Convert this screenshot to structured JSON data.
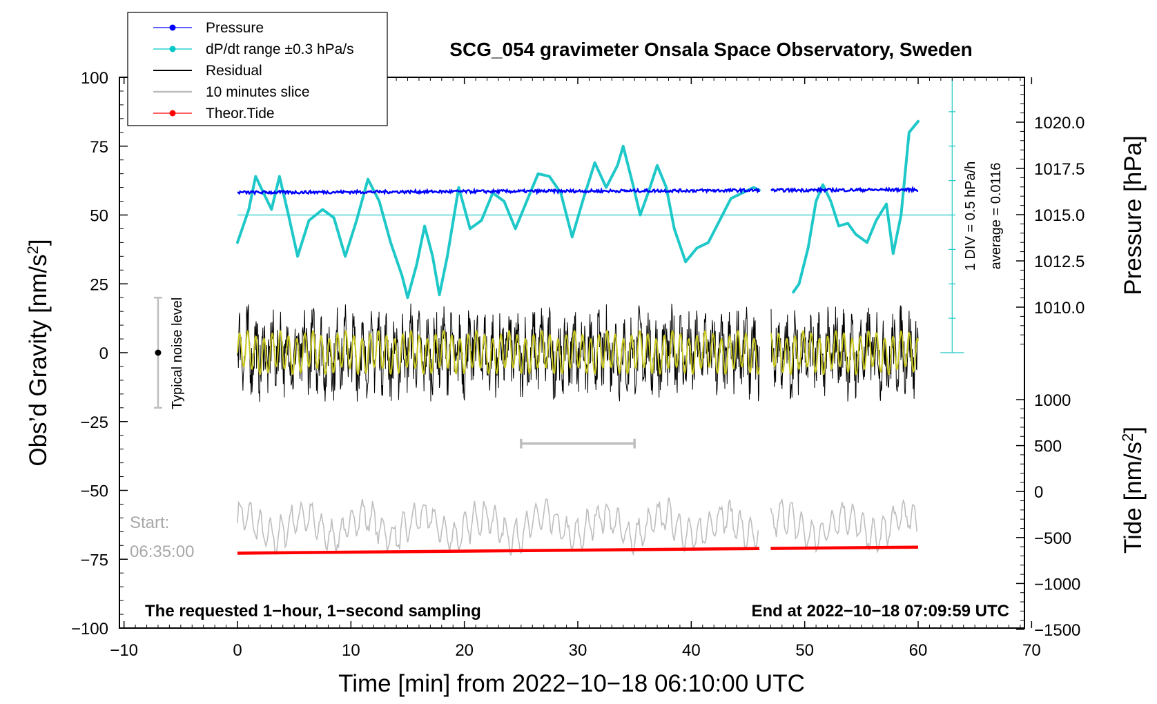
{
  "chart_data": {
    "type": "line",
    "title": "SCG_054 gravimeter Onsala Space Observatory, Sweden",
    "xlabel": "Time [min] from 2022−10−18 06:10:00 UTC",
    "ylabel": "Obs’d Gravity [nm/s²]",
    "ylabel_main": "Obs’d Gravity [nm/s",
    "ylabel_sup": "2",
    "ylabel_end": "]",
    "y2label": "Pressure [hPa]",
    "y3label_main": "Tide [nm/s",
    "y3label_sup": "2",
    "y3label_end": "]",
    "xlim": [
      -10,
      70
    ],
    "ylim": [
      -100,
      100
    ],
    "pressure_lim": [
      1007.5,
      1022.5
    ],
    "tide_lim": [
      -1500,
      1000
    ],
    "x_ticks": [
      -10,
      0,
      10,
      20,
      30,
      40,
      50,
      60,
      70
    ],
    "x_tick_labels": [
      "−10",
      "0",
      "10",
      "20",
      "30",
      "40",
      "50",
      "60",
      "70"
    ],
    "y_ticks": [
      -100,
      -75,
      -50,
      -25,
      0,
      25,
      50,
      75,
      100
    ],
    "y_tick_labels": [
      "−100",
      "−75",
      "−50",
      "−25",
      "0",
      "25",
      "50",
      "75",
      "100"
    ],
    "pressure_ticks": [
      1010.0,
      1012.5,
      1015.0,
      1017.5,
      1020.0
    ],
    "pressure_tick_labels": [
      "1010.0",
      "1012.5",
      "1015.0",
      "1017.5",
      "1020.0"
    ],
    "tide_ticks": [
      -1500,
      -1000,
      -500,
      0,
      500,
      1000
    ],
    "tide_tick_labels": [
      "−1500",
      "−1000",
      "−500",
      "0",
      "500",
      "1000"
    ],
    "legend": [
      {
        "label": "Pressure",
        "color": "#0000ff",
        "marker": true
      },
      {
        "label": "dP/dt range ±0.3 hPa/s",
        "color": "#00c8c8",
        "marker": true
      },
      {
        "label": "Residual",
        "color": "#000000",
        "marker": false
      },
      {
        "label": "10 minutes slice",
        "color": "#bebebe",
        "marker": false
      },
      {
        "label": "Theor.Tide",
        "color": "#ff0000",
        "marker": true
      }
    ],
    "series": [
      {
        "name": "Pressure",
        "axis": "pressure",
        "color": "#0000ff",
        "x_range": [
          0,
          60
        ],
        "gap": [
          46,
          47
        ],
        "mean": 1016.2,
        "noise": 0.08,
        "drift": 0.15
      },
      {
        "name": "dP/dt",
        "axis": "gravity",
        "color": "#1fc8c8",
        "gap": [
          46,
          49
        ],
        "x": [
          0,
          1,
          1.6,
          2.3,
          3,
          3.7,
          4.5,
          5.3,
          6.3,
          7.5,
          8.5,
          9.5,
          10.5,
          11.5,
          12.5,
          13.5,
          14.5,
          15,
          15.8,
          16.5,
          17.2,
          17.8,
          18.5,
          19.5,
          20.5,
          21.5,
          22.5,
          23.5,
          24.5,
          25.5,
          26.5,
          27.5,
          28.5,
          29.5,
          30.5,
          31.5,
          32.5,
          33.5,
          34,
          34.8,
          35.5,
          36.2,
          37,
          37.8,
          38.5,
          39.5,
          40.5,
          41.5,
          42.5,
          43.5,
          44.5,
          45.5,
          46,
          49,
          49.5,
          50.3,
          51,
          51.6,
          52.3,
          53,
          53.8,
          54.5,
          55.5,
          56.3,
          57.2,
          57.8,
          58.5,
          59.2,
          60
        ],
        "y": [
          40,
          52,
          64,
          58,
          52,
          64,
          50,
          35,
          48,
          52,
          49,
          35,
          48,
          63,
          55,
          40,
          28,
          20,
          32,
          46,
          35,
          21,
          35,
          60,
          45,
          48,
          58,
          55,
          45,
          55,
          65,
          64,
          58,
          42,
          56,
          69,
          60,
          68,
          75,
          62,
          50,
          58,
          68,
          60,
          45,
          33,
          38,
          40,
          48,
          56,
          58,
          60,
          59,
          22,
          25,
          38,
          55,
          61,
          55,
          46,
          47,
          43,
          40,
          48,
          54,
          36,
          50,
          80,
          84
        ]
      },
      {
        "name": "Residual",
        "axis": "gravity",
        "color": "#000000",
        "x_range": [
          0,
          60
        ],
        "gap": [
          46,
          47
        ],
        "amplitude": 11
      },
      {
        "name": "Residual smoothed",
        "axis": "gravity",
        "color": "#c8c820",
        "x_range": [
          0,
          60
        ],
        "gap": [
          46,
          47
        ],
        "amplitude": 6.5
      },
      {
        "name": "10 minutes slice",
        "axis": "gravity",
        "color": "#bebebe",
        "x_range": [
          0,
          60
        ],
        "gap": [
          46,
          47
        ],
        "center": -63,
        "amplitude": 7
      },
      {
        "name": "Theor.Tide",
        "axis": "gravity",
        "color": "#ff0000",
        "gap": [
          46,
          47
        ],
        "x": [
          0,
          60
        ],
        "y": [
          -72.8,
          -70.6
        ]
      }
    ],
    "slice_bar": {
      "x_start": 25,
      "x_end": 35,
      "y": -33
    },
    "noise_level": {
      "x": -7,
      "y_low": -20,
      "y_mid": 0,
      "y_high": 20,
      "label": "Typical noise level"
    },
    "average_line": {
      "y": 50
    },
    "div_scale": {
      "x": 63,
      "y_top": 100,
      "y_bottom": 0,
      "ticks": [
        0,
        12.5,
        25,
        37.5,
        50,
        62.5,
        75,
        87.5,
        100
      ],
      "label1": "1 DIV = 0.5 hPa/h",
      "label2": "average = 0.0116"
    },
    "annotations": {
      "start_label": "Start:",
      "start_time": "06:35:00",
      "bottom_left": "The requested 1−hour, 1−second sampling",
      "bottom_right": "End at 2022−10−18 07:09:59 UTC"
    }
  }
}
